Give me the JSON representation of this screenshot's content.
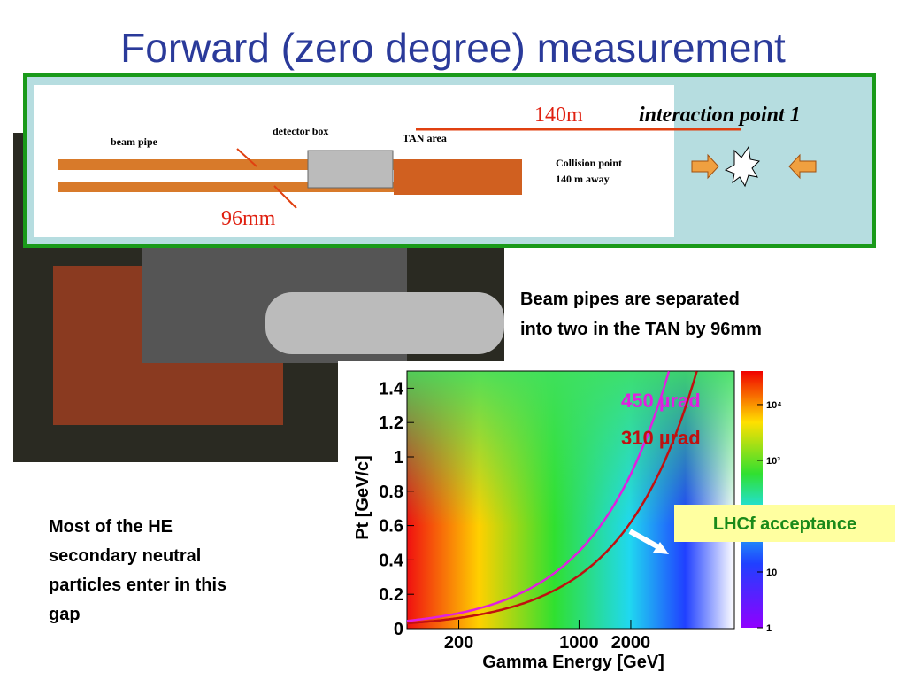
{
  "title": "Forward (zero degree) measurement",
  "diagram": {
    "distance": "140m",
    "interaction_point": "interaction point 1",
    "beam_pipe": "beam pipe",
    "detector_box": "detector box",
    "tan_area": "TAN area",
    "collision_point": "Collision point",
    "collision_distance": "140 m away",
    "separation": "96mm"
  },
  "note_top": [
    "Beam pipes are separated",
    "into two in the TAN by 96mm"
  ],
  "note_bottom": [
    "Most of the HE",
    "secondary neutral",
    "particles enter in this",
    "gap"
  ],
  "plot": {
    "x_label": "Gamma Energy [GeV]",
    "y_label": "Pt [GeV/c]",
    "log_x": true,
    "xlim": [
      100,
      8000
    ],
    "xticks": [
      200,
      1000,
      2000
    ],
    "ylim": [
      0,
      1.5
    ],
    "yticks": [
      0,
      0.2,
      0.4,
      0.6,
      0.8,
      1,
      1.2,
      1.4
    ],
    "clim": [
      1,
      40000
    ],
    "cticks": [
      1,
      10,
      {
        "value": 1000,
        "label": "10³"
      },
      {
        "value": 10000,
        "label": "10⁴"
      }
    ],
    "curves": [
      {
        "label": "450 µrad",
        "theta": 0.00045,
        "color": "#e020e0"
      },
      {
        "label": "310 µrad",
        "theta": 0.00031,
        "color": "#c01010"
      }
    ],
    "acceptance": "LHCf acceptance"
  }
}
